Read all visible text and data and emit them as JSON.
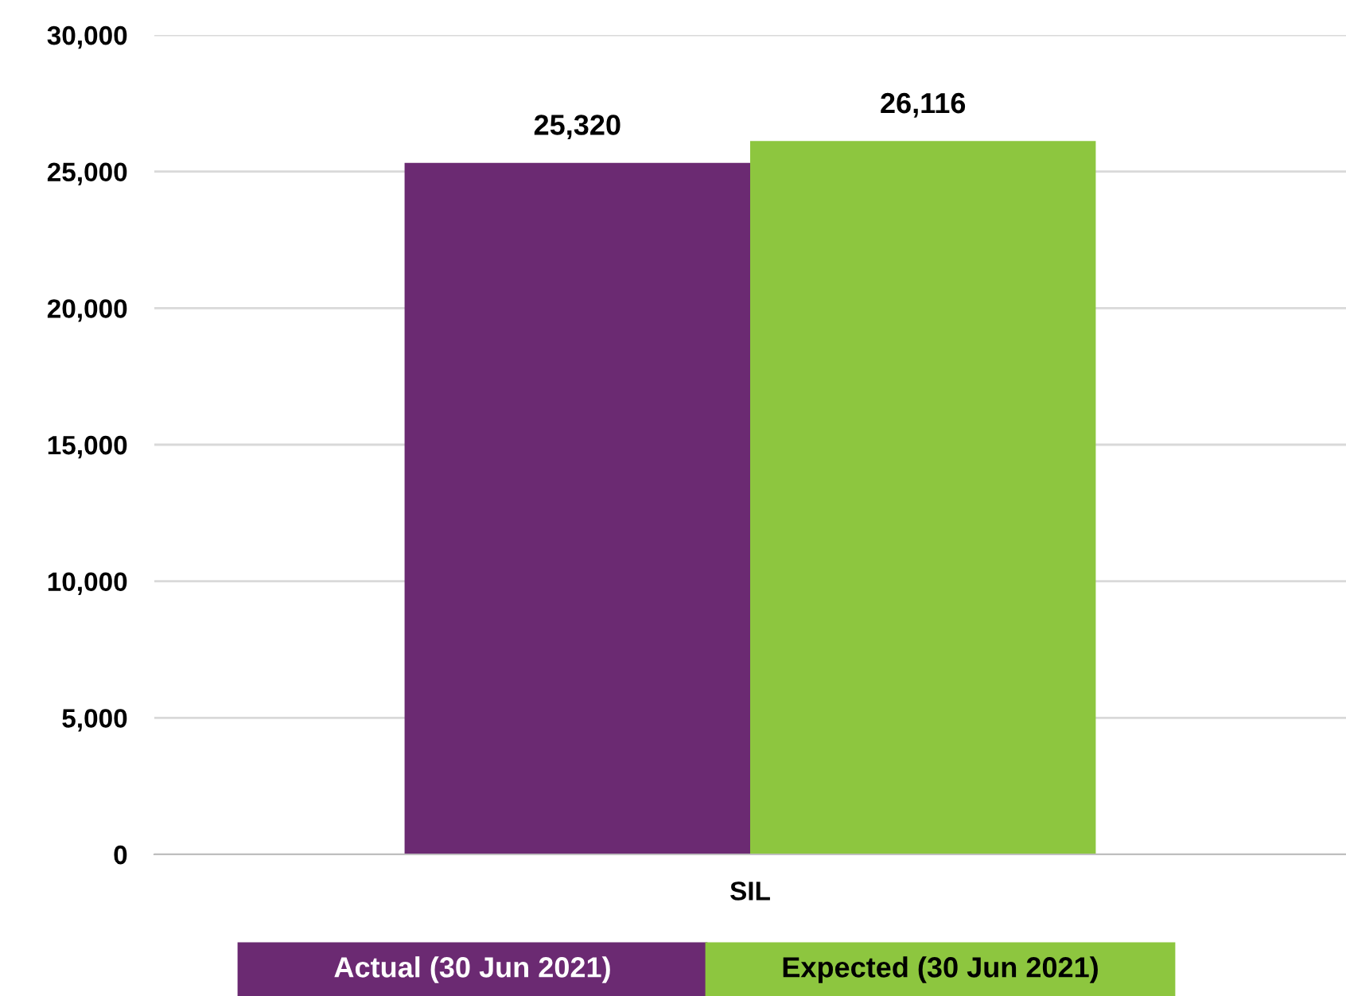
{
  "chart_data": {
    "type": "bar",
    "categories": [
      "SIL"
    ],
    "series": [
      {
        "name": "Actual (30 Jun 2021)",
        "color": "#6b2a72",
        "values": [
          25320
        ]
      },
      {
        "name": "Expected (30 Jun 2021)",
        "color": "#8dc63f",
        "values": [
          26116
        ]
      }
    ],
    "ylim": [
      0,
      30000
    ],
    "yticks": [
      {
        "value": 0,
        "label": "0"
      },
      {
        "value": 5000,
        "label": "5,000"
      },
      {
        "value": 10000,
        "label": "10,000"
      },
      {
        "value": 15000,
        "label": "15,000"
      },
      {
        "value": 20000,
        "label": "20,000"
      },
      {
        "value": 25000,
        "label": "25,000"
      },
      {
        "value": 30000,
        "label": "30,000"
      }
    ],
    "grid": "y",
    "legend": "bottom",
    "value_labels": [
      [
        "25,320"
      ],
      [
        "26,116"
      ]
    ]
  }
}
